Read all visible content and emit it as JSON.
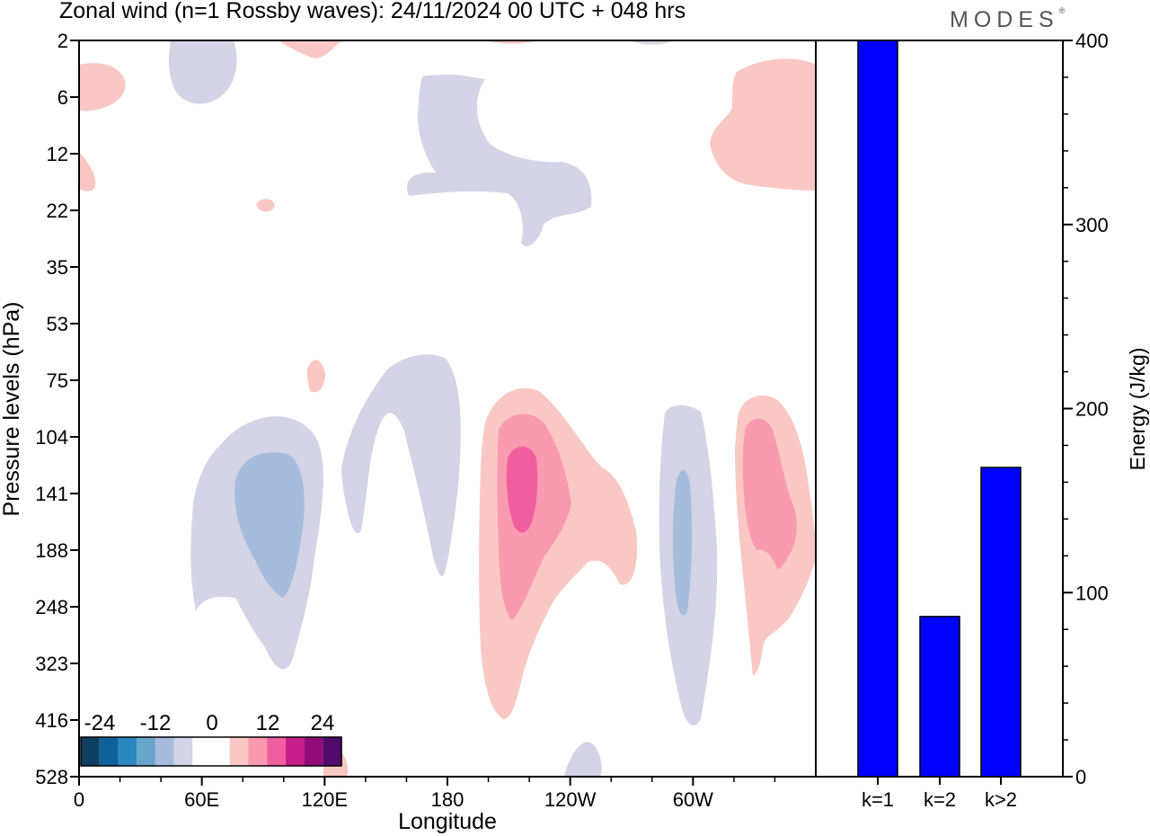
{
  "header": {
    "title": "Zonal wind (n=1 Rossby waves):  24/11/2024  00 UTC  + 048 hrs",
    "brand": "MODES",
    "brand_mark": "®"
  },
  "chart_data": [
    {
      "type": "heatmap",
      "title": "Zonal wind (n=1 Rossby waves):  24/11/2024  00 UTC  + 048 hrs",
      "xlabel": "Longitude",
      "ylabel": "Pressure levels (hPa)",
      "x_ticks": [
        "0",
        "60E",
        "120E",
        "180",
        "120W",
        "60W"
      ],
      "y_ticks": [
        "2",
        "6",
        "12",
        "22",
        "35",
        "53",
        "75",
        "104",
        "141",
        "188",
        "248",
        "323",
        "416",
        "528"
      ],
      "colorbar": {
        "labels": [
          "-24",
          "-12",
          "0",
          "12",
          "24"
        ],
        "colors": [
          "#0e3e60",
          "#0e6199",
          "#2a86bf",
          "#68a5cd",
          "#a5bcdc",
          "#d4d4e6",
          "#ffffff",
          "#ffffff",
          "#f9c8c4",
          "#f99ab1",
          "#f05e9d",
          "#c81e89",
          "#920d78",
          "#520b6c"
        ]
      },
      "colors": {
        "neg_light": "#d4d4e6",
        "neg_mid": "#a5bcdc",
        "pos_light": "#f9c8c4",
        "pos_mid": "#f99ab1",
        "pos_strong": "#f05e9d"
      }
    },
    {
      "type": "bar",
      "categories": [
        "k=1",
        "k=2",
        "k>2"
      ],
      "values": [
        400,
        87,
        168
      ],
      "ylabel": "Energy (J/kg)",
      "ylim": [
        0,
        400
      ],
      "y_ticks": [
        "0",
        "100",
        "200",
        "300",
        "400"
      ],
      "bar_color": "#0000ff"
    }
  ]
}
